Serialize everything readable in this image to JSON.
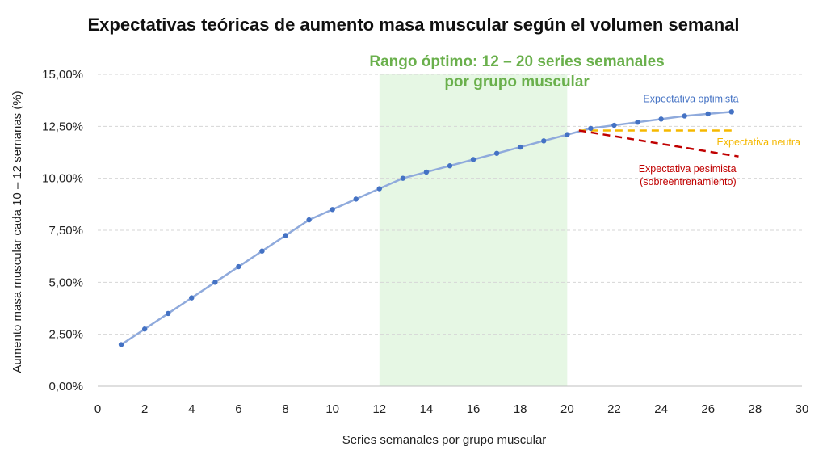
{
  "chart_data": {
    "type": "line",
    "title": "Expectativas teóricas de aumento masa muscular según el volumen semanal",
    "xlabel": "Series semanales por grupo muscular",
    "ylabel": "Aumento masa muscular cada 10 – 12 semanas (%)",
    "xlim": [
      0,
      30
    ],
    "ylim": [
      0,
      15
    ],
    "x_ticks": [
      "0",
      "2",
      "4",
      "6",
      "8",
      "10",
      "12",
      "14",
      "16",
      "18",
      "20",
      "22",
      "24",
      "26",
      "28",
      "30"
    ],
    "y_ticks": [
      "0,00%",
      "2,50%",
      "5,00%",
      "7,50%",
      "10,00%",
      "12,50%",
      "15,00%"
    ],
    "grid": "horizontal dashed",
    "highlight_band": {
      "x_range": [
        12,
        20
      ],
      "label_lines": [
        "Rango óptimo: 12 – 20 series semanales",
        "por grupo muscular"
      ],
      "color": "#e6f7e4"
    },
    "series": [
      {
        "name": "Expectativa optimista",
        "color": "#4472c4",
        "line_color": "#8faadc",
        "style": "solid-markers",
        "x": [
          1,
          2,
          3,
          4,
          5,
          6,
          7,
          8,
          9,
          10,
          11,
          12,
          13,
          14,
          15,
          16,
          17,
          18,
          19,
          20,
          21,
          22,
          23,
          24,
          25,
          26,
          27
        ],
        "y": [
          2.0,
          2.75,
          3.5,
          4.25,
          5.0,
          5.75,
          6.5,
          7.25,
          8.0,
          8.5,
          9.0,
          9.5,
          10.0,
          10.3,
          10.6,
          10.9,
          11.2,
          11.5,
          11.8,
          12.1,
          12.4,
          12.55,
          12.7,
          12.85,
          13.0,
          13.1,
          13.2
        ]
      },
      {
        "name": "Expectativa neutra",
        "color": "#f5b800",
        "style": "dashed",
        "x": [
          20.5,
          27
        ],
        "y": [
          12.3,
          12.3
        ]
      },
      {
        "name": "Expectativa pesimista (sobreentrenamiento)",
        "label_lines": [
          "Expectativa pesimista",
          "(sobreentrenamiento)"
        ],
        "color": "#c00000",
        "style": "dashed",
        "x": [
          20.5,
          27.3
        ],
        "y": [
          12.3,
          11.05
        ]
      }
    ]
  }
}
